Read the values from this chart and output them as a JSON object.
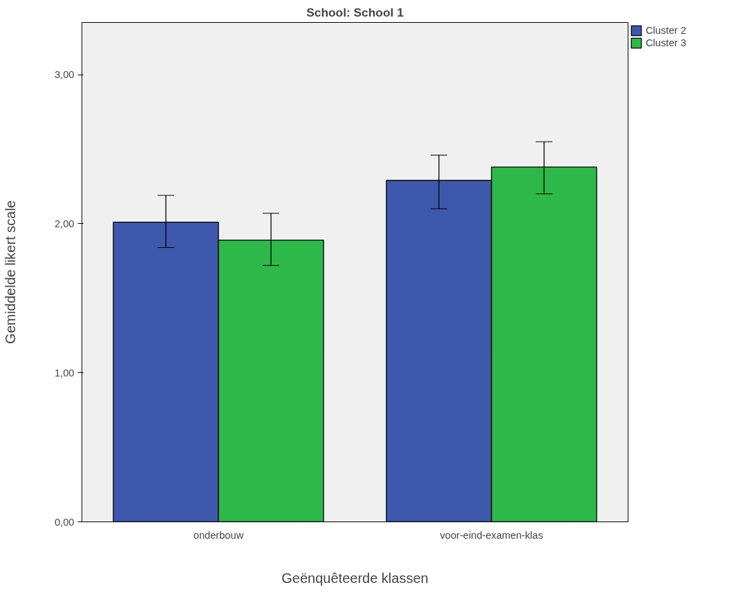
{
  "chart_data": {
    "type": "bar",
    "title": "School: School 1",
    "xlabel": "Geënquêteerde klassen",
    "ylabel": "Gemiddelde likert scale",
    "categories": [
      "onderbouw",
      "voor-eind-examen-klas"
    ],
    "series": [
      {
        "name": "Cluster 2",
        "color": "#3e58ac",
        "values": [
          2.01,
          2.29
        ],
        "errors": [
          [
            1.84,
            2.19
          ],
          [
            2.1,
            2.46
          ]
        ]
      },
      {
        "name": "Cluster 3",
        "color": "#2fb84a",
        "values": [
          1.89,
          2.38
        ],
        "errors": [
          [
            1.72,
            2.07
          ],
          [
            2.2,
            2.55
          ]
        ]
      }
    ],
    "ylim": [
      0,
      3.35
    ],
    "yticks": [
      {
        "value": 0,
        "label": "0,00"
      },
      {
        "value": 1,
        "label": "1,00"
      },
      {
        "value": 2,
        "label": "2,00"
      },
      {
        "value": 3,
        "label": "3,00"
      }
    ],
    "grid": false,
    "legend": "top right"
  }
}
